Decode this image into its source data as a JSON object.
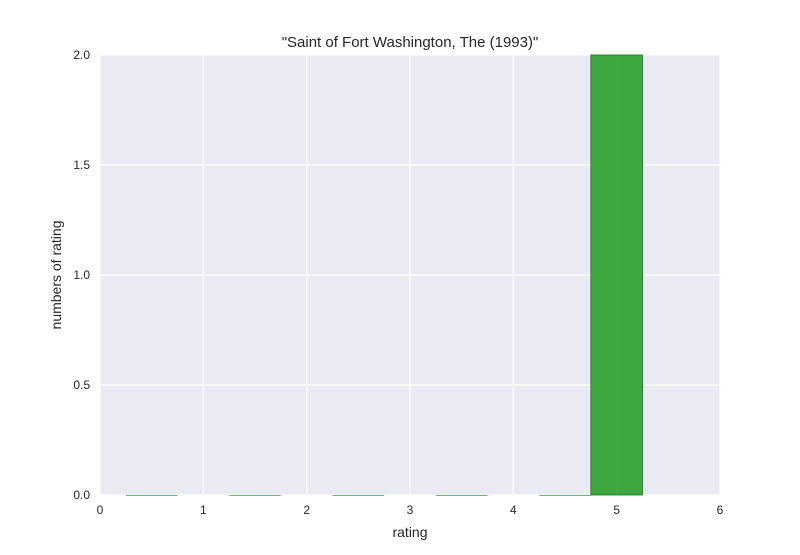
{
  "chart_data": {
    "type": "bar",
    "title": "\"Saint of Fort Washington, The (1993)\"",
    "xlabel": "rating",
    "ylabel": "numbers of rating",
    "xlim": [
      0,
      6
    ],
    "ylim": [
      0,
      2.0
    ],
    "x_ticks": [
      "0",
      "1",
      "2",
      "3",
      "4",
      "5",
      "6"
    ],
    "y_ticks": [
      "0.0",
      "0.5",
      "1.0",
      "1.5",
      "2.0"
    ],
    "grid": true,
    "legend": "none",
    "bars": [
      {
        "x_start": 0.25,
        "x_end": 0.75,
        "value": 0
      },
      {
        "x_start": 1.25,
        "x_end": 1.75,
        "value": 0
      },
      {
        "x_start": 2.25,
        "x_end": 2.75,
        "value": 0
      },
      {
        "x_start": 3.25,
        "x_end": 3.75,
        "value": 0
      },
      {
        "x_start": 4.25,
        "x_end": 4.75,
        "value": 0
      },
      {
        "x_start": 4.75,
        "x_end": 5.25,
        "value": 2
      }
    ],
    "colors": {
      "background": "#eaeaf2",
      "grid": "#ffffff",
      "bar_fill": "#2ca02c",
      "bar_edge": "#1f6e1f"
    }
  }
}
